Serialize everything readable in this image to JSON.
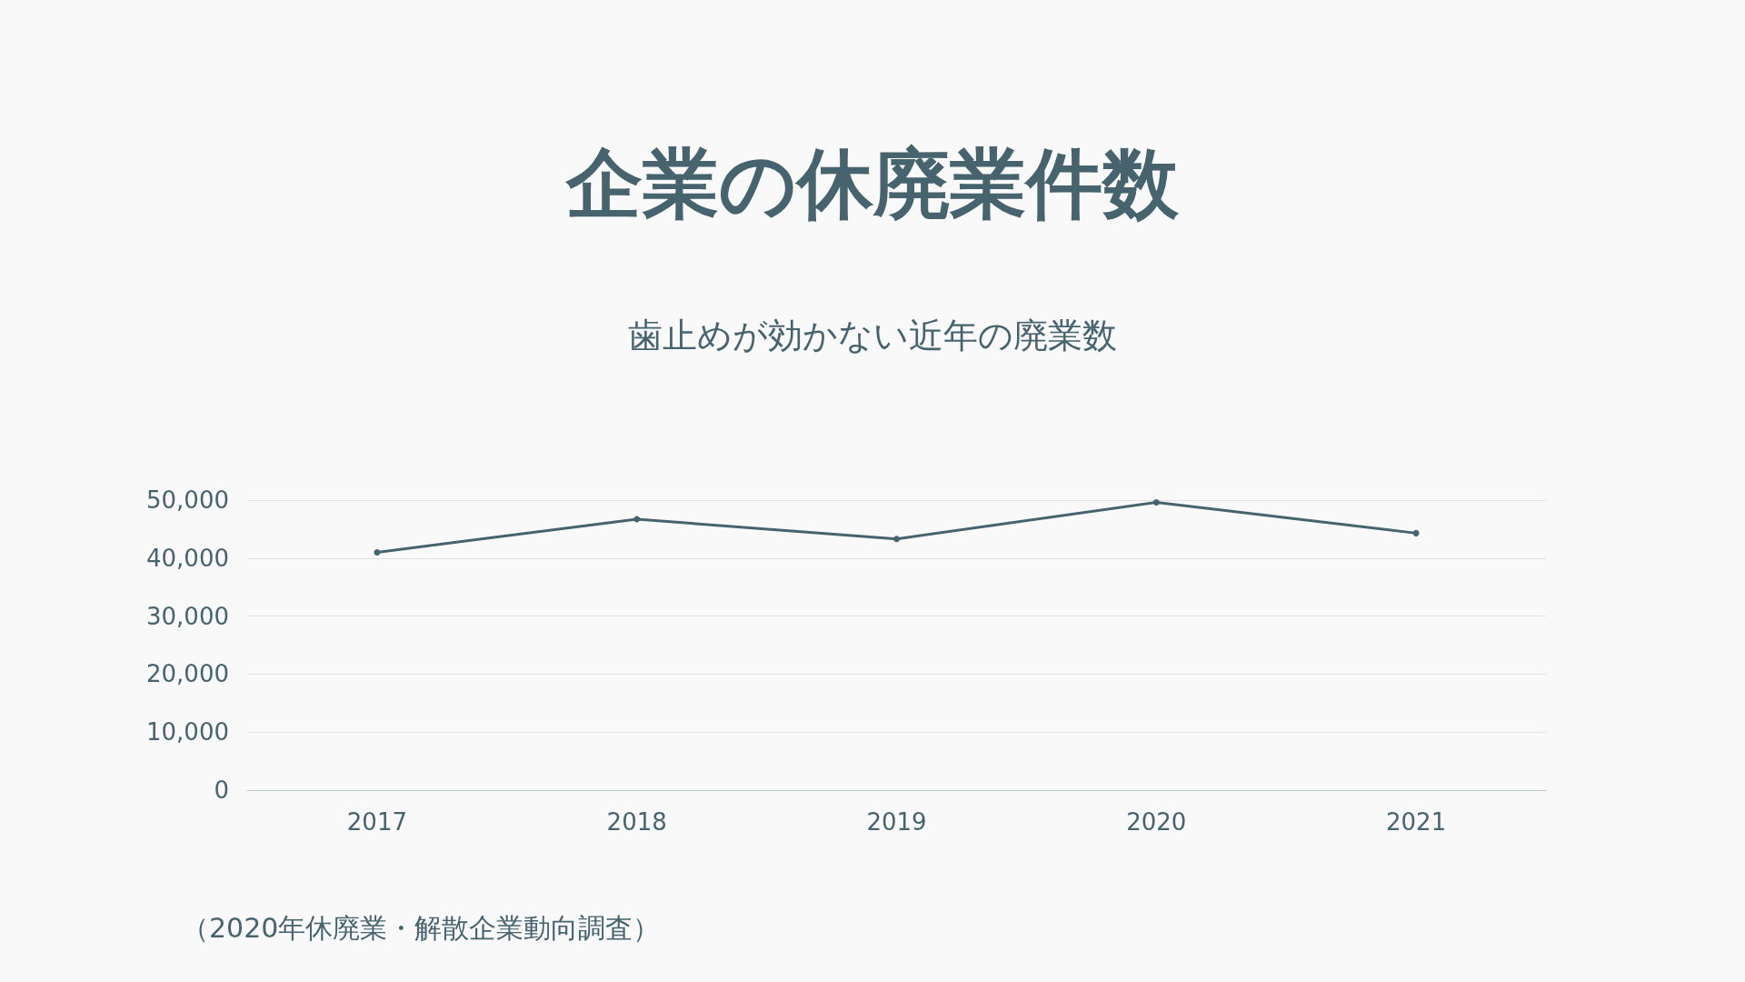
{
  "chart_data": {
    "type": "line",
    "title": "企業の休廃業件数",
    "subtitle": "歯止めが効かない近年の廃業数",
    "categories": [
      "2017",
      "2018",
      "2019",
      "2020",
      "2021"
    ],
    "series": [
      {
        "color": "#47646e",
        "values": [
          41000,
          46700,
          43300,
          49600,
          44300
        ]
      }
    ],
    "ylim": [
      0,
      50000
    ],
    "yticks": [
      0,
      {
        "value": 10000,
        "label": "10,000"
      },
      {
        "value": 20000,
        "label": "20,000"
      },
      {
        "value": 30000,
        "label": "30,000"
      },
      {
        "value": 40000,
        "label": "40,000"
      },
      {
        "value": 50000,
        "label": "50,000"
      }
    ],
    "grid": "y",
    "marker": "circle",
    "line_style": "solid",
    "annotations": [
      "（2020年休廃業・解散企業動向調査）"
    ]
  }
}
